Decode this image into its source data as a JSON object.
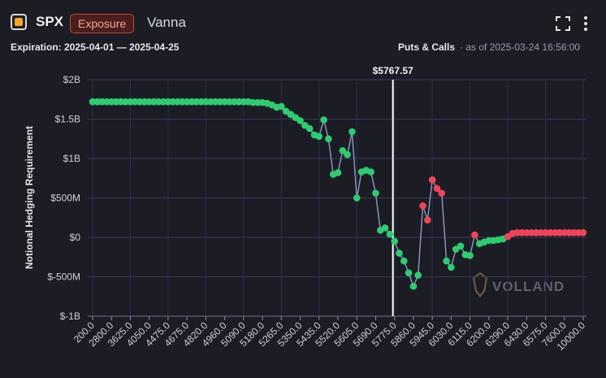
{
  "header": {
    "ticker": "SPX",
    "badge": "Exposure",
    "metric": "Vanna",
    "expiration": "Expiration: 2025-04-01 — 2025-04-25",
    "mode": "Puts & Calls",
    "as_of": "· as of 2025-03-24 16:56:00"
  },
  "chart_data": {
    "type": "line",
    "y_label": "Notional Hedging Requirement",
    "watermark": "VOLLAND",
    "annotation": {
      "value": 5767.57,
      "label": "$5767.57"
    },
    "categories": [
      "200.0",
      null,
      null,
      null,
      "2800.0",
      null,
      null,
      null,
      "3625.0",
      null,
      null,
      null,
      "4050.0",
      null,
      null,
      null,
      "4475.0",
      null,
      null,
      null,
      "4675.0",
      null,
      null,
      null,
      "4820.0",
      null,
      null,
      null,
      "4960.0",
      null,
      null,
      null,
      "5090.0",
      null,
      null,
      null,
      "5180.0",
      null,
      null,
      null,
      "5265.0",
      null,
      null,
      null,
      "5350.0",
      null,
      null,
      null,
      "5435.0",
      null,
      null,
      null,
      "5520.0",
      null,
      null,
      null,
      "5605.0",
      null,
      null,
      null,
      "5690.0",
      null,
      null,
      null,
      "5775.0",
      null,
      null,
      null,
      "5860.0",
      null,
      null,
      null,
      "5945.0",
      null,
      null,
      null,
      "6030.0",
      null,
      null,
      null,
      "6115.0",
      null,
      null,
      null,
      "6200.0",
      null,
      null,
      null,
      "6290.0",
      null,
      null,
      null,
      "6430.0",
      null,
      null,
      null,
      "6575.0",
      null,
      null,
      null,
      "7600.0",
      null,
      null,
      null,
      "10000.0"
    ],
    "series": [
      {
        "name": "Vanna",
        "color": "#8a93b8",
        "values": [
          1720,
          1720,
          1720,
          1720,
          1720,
          1720,
          1720,
          1720,
          1720,
          1720,
          1720,
          1720,
          1720,
          1720,
          1720,
          1720,
          1720,
          1720,
          1720,
          1720,
          1720,
          1720,
          1720,
          1720,
          1720,
          1720,
          1720,
          1720,
          1720,
          1720,
          1720,
          1720,
          1720,
          1720,
          1710,
          1710,
          1710,
          1700,
          1680,
          1650,
          1660,
          1600,
          1560,
          1520,
          1480,
          1420,
          1380,
          1300,
          1280,
          1490,
          1250,
          800,
          820,
          1100,
          1050,
          1340,
          500,
          830,
          850,
          830,
          560,
          90,
          120,
          40,
          -50,
          -200,
          -300,
          -450,
          -620,
          -480,
          400,
          220,
          730,
          620,
          560,
          -300,
          -380,
          -150,
          -110,
          -220,
          -230,
          30,
          -80,
          -60,
          -40,
          -40,
          -30,
          -20,
          10,
          50,
          60,
          60,
          60,
          60,
          60,
          60,
          60,
          60,
          60,
          60,
          60,
          60,
          60,
          60,
          60
        ],
        "point_colors": [
          "#2ecc71",
          "#2ecc71",
          "#2ecc71",
          "#2ecc71",
          "#2ecc71",
          "#2ecc71",
          "#2ecc71",
          "#2ecc71",
          "#2ecc71",
          "#2ecc71",
          "#2ecc71",
          "#2ecc71",
          "#2ecc71",
          "#2ecc71",
          "#2ecc71",
          "#2ecc71",
          "#2ecc71",
          "#2ecc71",
          "#2ecc71",
          "#2ecc71",
          "#2ecc71",
          "#2ecc71",
          "#2ecc71",
          "#2ecc71",
          "#2ecc71",
          "#2ecc71",
          "#2ecc71",
          "#2ecc71",
          "#2ecc71",
          "#2ecc71",
          "#2ecc71",
          "#2ecc71",
          "#2ecc71",
          "#2ecc71",
          "#2ecc71",
          "#2ecc71",
          "#2ecc71",
          "#2ecc71",
          "#2ecc71",
          "#2ecc71",
          "#2ecc71",
          "#2ecc71",
          "#2ecc71",
          "#2ecc71",
          "#2ecc71",
          "#2ecc71",
          "#2ecc71",
          "#2ecc71",
          "#2ecc71",
          "#2ecc71",
          "#2ecc71",
          "#2ecc71",
          "#2ecc71",
          "#2ecc71",
          "#2ecc71",
          "#2ecc71",
          "#2ecc71",
          "#2ecc71",
          "#2ecc71",
          "#2ecc71",
          "#2ecc71",
          "#2ecc71",
          "#2ecc71",
          "#2ecc71",
          "#2ecc71",
          "#2ecc71",
          "#2ecc71",
          "#2ecc71",
          "#2ecc71",
          "#2ecc71",
          "#f0435a",
          "#f0435a",
          "#f0435a",
          "#f0435a",
          "#f0435a",
          "#2ecc71",
          "#2ecc71",
          "#2ecc71",
          "#2ecc71",
          "#2ecc71",
          "#2ecc71",
          "#f0435a",
          "#2ecc71",
          "#2ecc71",
          "#2ecc71",
          "#2ecc71",
          "#2ecc71",
          "#2ecc71",
          "#f0435a",
          "#f0435a",
          "#f0435a",
          "#f0435a",
          "#f0435a",
          "#f0435a",
          "#f0435a",
          "#f0435a",
          "#f0435a",
          "#f0435a",
          "#f0435a",
          "#f0435a",
          "#f0435a",
          "#f0435a",
          "#f0435a",
          "#f0435a",
          "#f0435a"
        ]
      }
    ],
    "ylim": [
      -1000,
      2000
    ],
    "yticks": [
      {
        "value": -1000,
        "label": "$-1B"
      },
      {
        "value": -500,
        "label": "$-500M"
      },
      {
        "value": 0,
        "label": "$0"
      },
      {
        "value": 500,
        "label": "$500M"
      },
      {
        "value": 1000,
        "label": "$1B"
      },
      {
        "value": 1500,
        "label": "$1.5B"
      },
      {
        "value": 2000,
        "label": "$2B"
      }
    ],
    "grid": true
  }
}
